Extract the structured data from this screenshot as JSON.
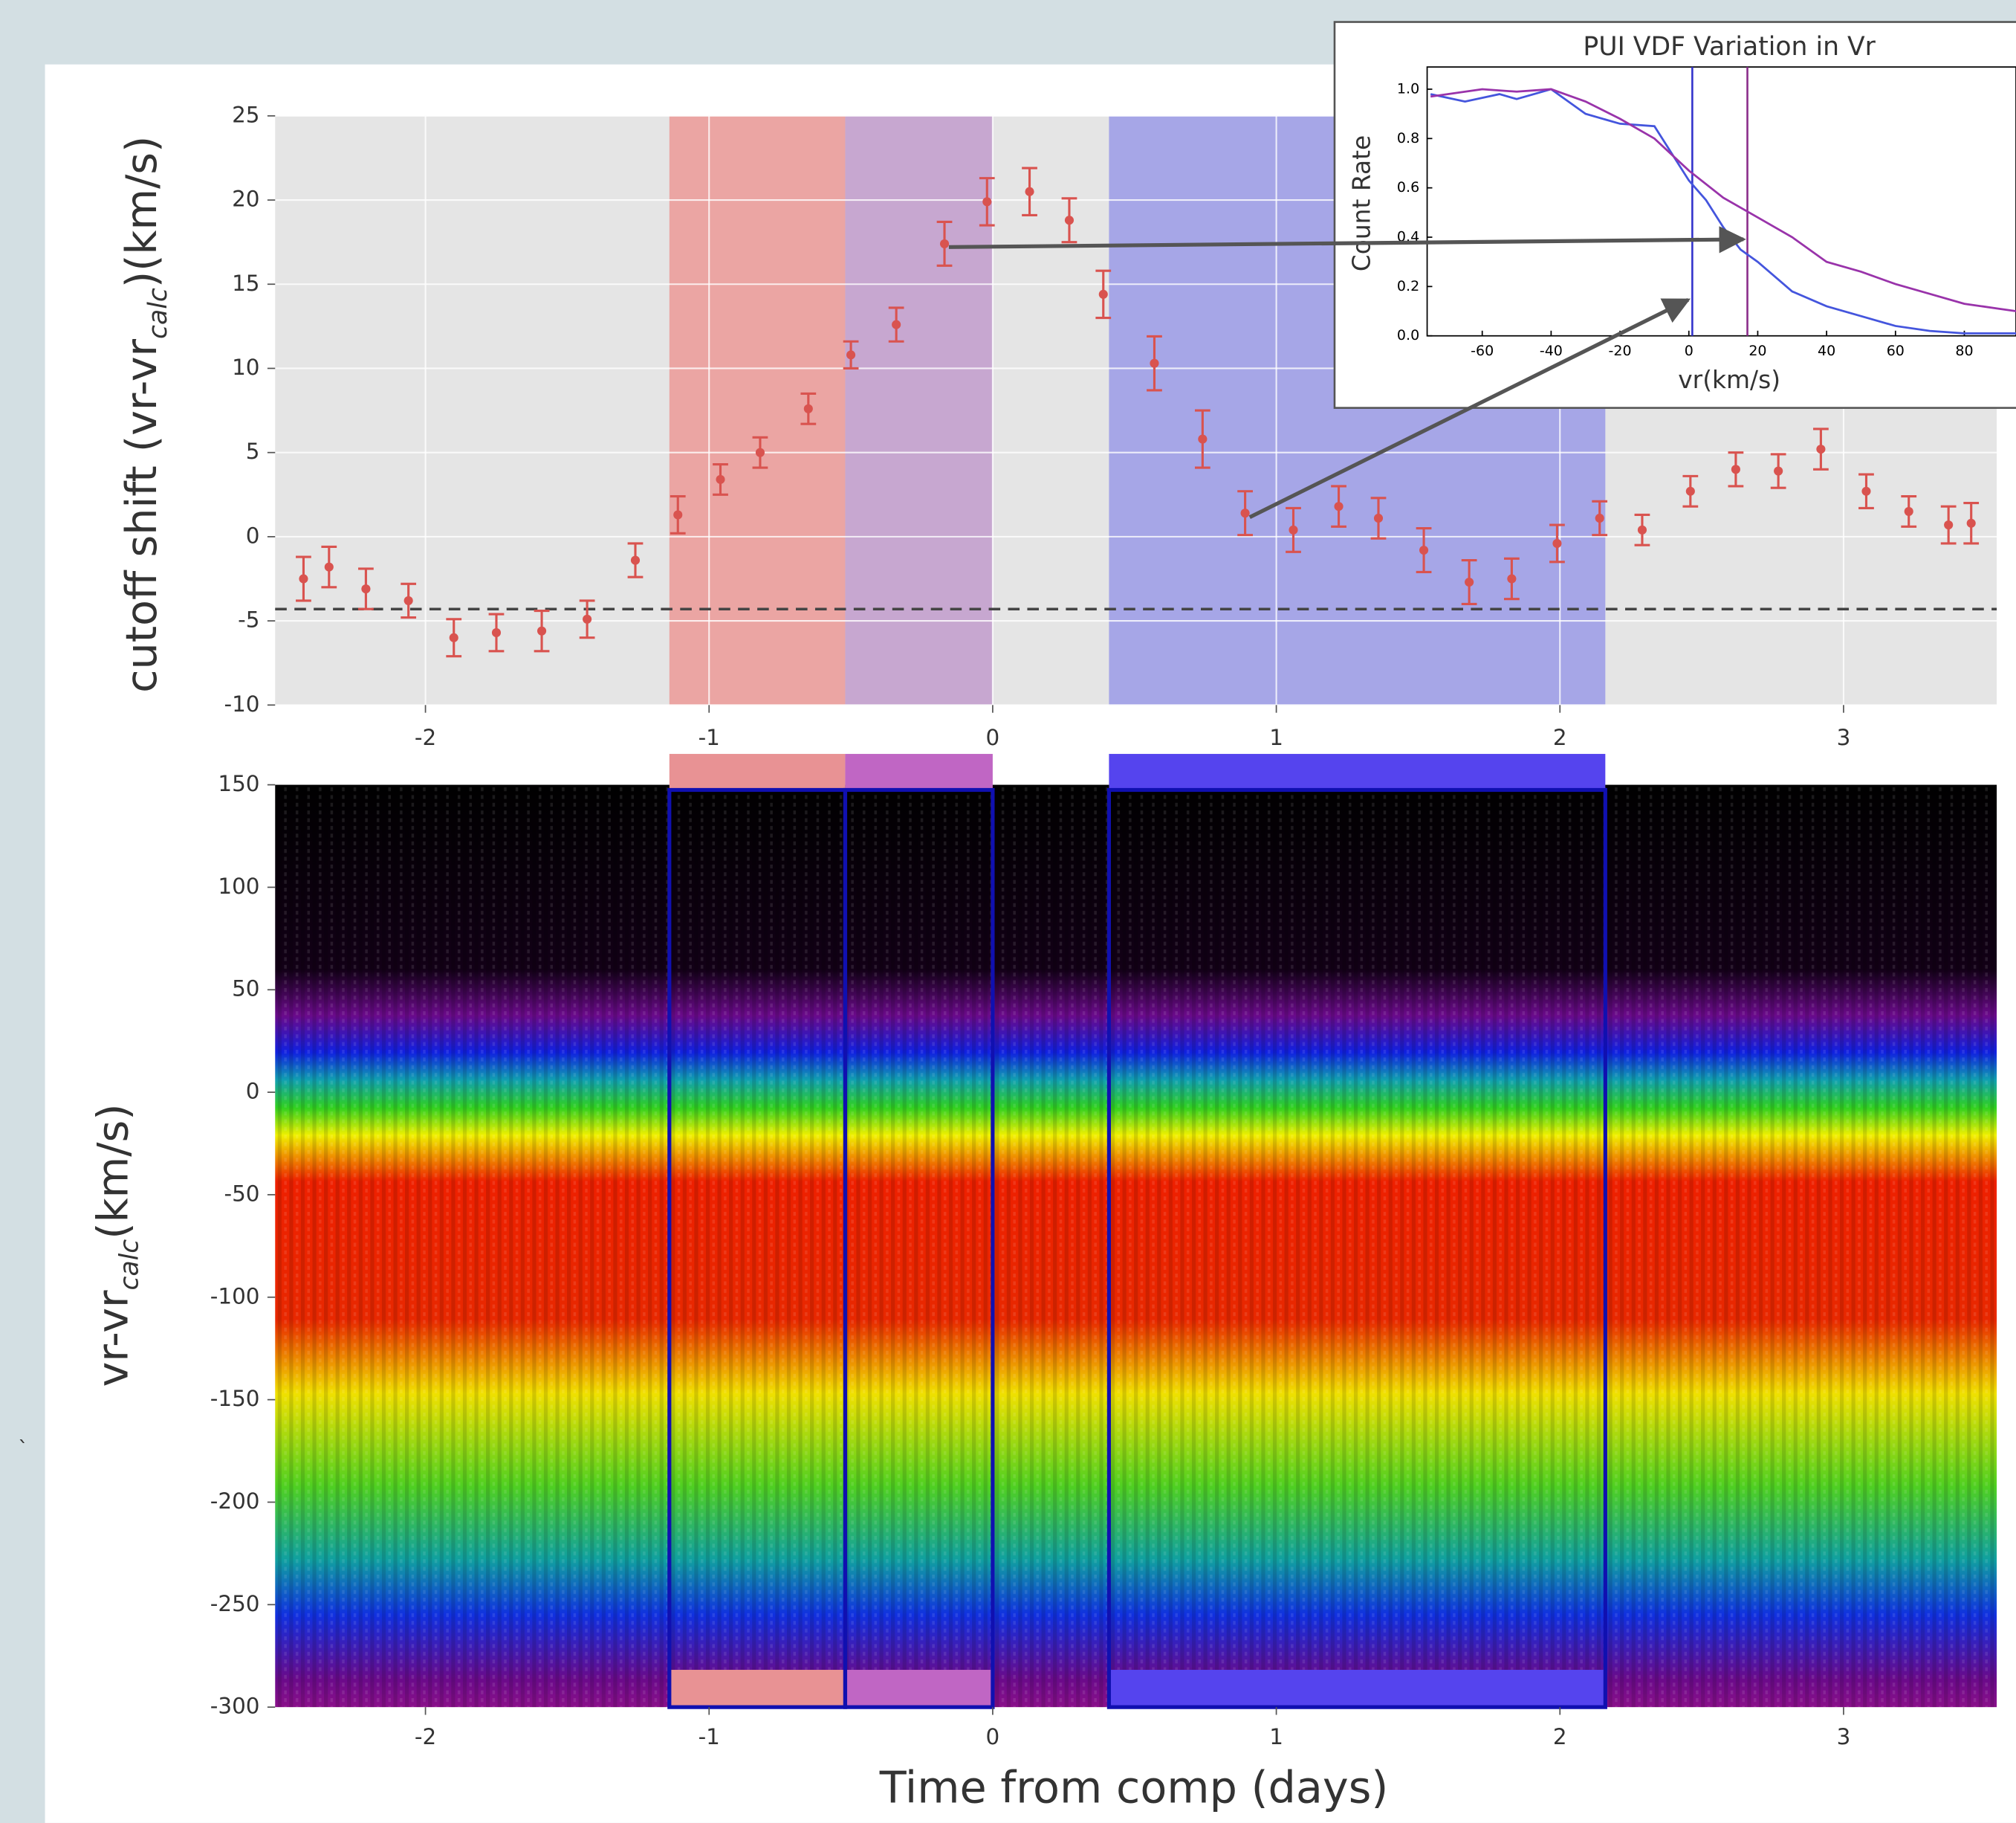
{
  "chart_data": [
    {
      "type": "scatter",
      "ylabel": {
        "main": "cutoff shift (vr-vr",
        "sub": "calc",
        "tail": ")(km/s)"
      },
      "xlim": [
        -2.53,
        3.54
      ],
      "ylim": [
        -10,
        25
      ],
      "xticks": [
        -2,
        -1,
        0,
        1,
        2,
        3
      ],
      "yticks": [
        -10,
        -5,
        0,
        5,
        10,
        15,
        20,
        25
      ],
      "grid": true,
      "color": "#d9534f",
      "hline": -4.3,
      "regions": [
        {
          "start": -1.14,
          "end": -0.52,
          "color": "#ec9a98"
        },
        {
          "start": -0.52,
          "end": 0,
          "color": "#c29ccc"
        },
        {
          "start": 0.41,
          "end": 2.16,
          "color": "#9b9be8"
        }
      ],
      "x": [
        -2.43,
        -2.34,
        -2.21,
        -2.06,
        -1.9,
        -1.75,
        -1.59,
        -1.43,
        -1.26,
        -1.11,
        -0.96,
        -0.82,
        -0.65,
        -0.5,
        -0.34,
        -0.17,
        -0.02,
        0.13,
        0.27,
        0.39,
        0.57,
        0.74,
        0.89,
        1.06,
        1.22,
        1.36,
        1.52,
        1.68,
        1.83,
        1.99,
        2.14,
        2.29,
        2.46,
        2.62,
        2.77,
        2.92,
        3.08,
        3.23,
        3.37,
        3.45
      ],
      "values": [
        -2.5,
        -1.8,
        -3.1,
        -3.8,
        -6.0,
        -5.7,
        -5.6,
        -4.9,
        -1.4,
        1.3,
        3.4,
        5.0,
        7.6,
        10.8,
        12.6,
        17.4,
        19.9,
        20.5,
        18.8,
        14.4,
        10.3,
        5.8,
        1.4,
        0.4,
        1.8,
        1.1,
        -0.8,
        -2.7,
        -2.5,
        -0.4,
        1.1,
        0.4,
        2.7,
        4.0,
        3.9,
        5.2,
        2.7,
        1.5,
        0.7,
        0.8
      ],
      "errors": [
        1.3,
        1.2,
        1.2,
        1.0,
        1.1,
        1.1,
        1.2,
        1.1,
        1.0,
        1.1,
        0.9,
        0.9,
        0.9,
        0.8,
        1.0,
        1.3,
        1.4,
        1.4,
        1.3,
        1.4,
        1.6,
        1.7,
        1.3,
        1.3,
        1.2,
        1.2,
        1.3,
        1.3,
        1.2,
        1.1,
        1.0,
        0.9,
        0.9,
        1.0,
        1.0,
        1.2,
        1.0,
        0.9,
        1.1,
        1.2
      ]
    },
    {
      "type": "heatmap",
      "xlabel": "Time from comp (days)",
      "ylabel": {
        "main": "vr-vr",
        "sub": "calc",
        "tail": "(km/s)"
      },
      "xlim": [
        -2.53,
        3.54
      ],
      "ylim": [
        -300,
        150
      ],
      "xticks": [
        -2,
        -1,
        0,
        1,
        2,
        3
      ],
      "yticks": [
        -300,
        -250,
        -200,
        -150,
        -100,
        -50,
        0,
        50,
        100,
        150
      ],
      "band_colors": [
        "#e89294",
        "#c066c4",
        "#5544ee"
      ],
      "stray_mark": "`"
    },
    {
      "type": "line",
      "title": "PUI VDF Variation in Vr",
      "xlabel": "vr(km/s)",
      "ylabel": "Count Rate",
      "xlim": [
        -76,
        95
      ],
      "ylim": [
        0,
        1.09
      ],
      "xticks": [
        -60,
        -40,
        -20,
        0,
        20,
        40,
        60,
        80
      ],
      "yticks": [
        {
          "value": 0,
          "label": "0.0"
        },
        0.2,
        0.4,
        0.6,
        0.8,
        {
          "value": 1,
          "label": "1.0"
        }
      ],
      "series": [
        {
          "color": "#4455dd",
          "x": [
            -75,
            -65,
            -55,
            -50,
            -40,
            -30,
            -20,
            -10,
            0,
            5,
            10,
            15,
            20,
            30,
            40,
            50,
            60,
            70,
            80,
            95
          ],
          "values": [
            0.98,
            0.95,
            0.98,
            0.96,
            1.0,
            0.9,
            0.86,
            0.85,
            0.63,
            0.55,
            0.44,
            0.35,
            0.3,
            0.18,
            0.12,
            0.08,
            0.04,
            0.02,
            0.01,
            0.01
          ]
        },
        {
          "color": "#9933aa",
          "x": [
            -75,
            -60,
            -50,
            -40,
            -30,
            -20,
            -10,
            0,
            10,
            20,
            30,
            40,
            50,
            60,
            70,
            80,
            90,
            95
          ],
          "values": [
            0.97,
            1.0,
            0.99,
            1.0,
            0.95,
            0.88,
            0.8,
            0.67,
            0.56,
            0.48,
            0.4,
            0.3,
            0.26,
            0.21,
            0.17,
            0.13,
            0.11,
            0.1
          ]
        }
      ],
      "vlines": [
        {
          "value": 1,
          "color": "#3333cc"
        },
        {
          "value": 17,
          "color": "#8a2d8a"
        }
      ]
    }
  ]
}
